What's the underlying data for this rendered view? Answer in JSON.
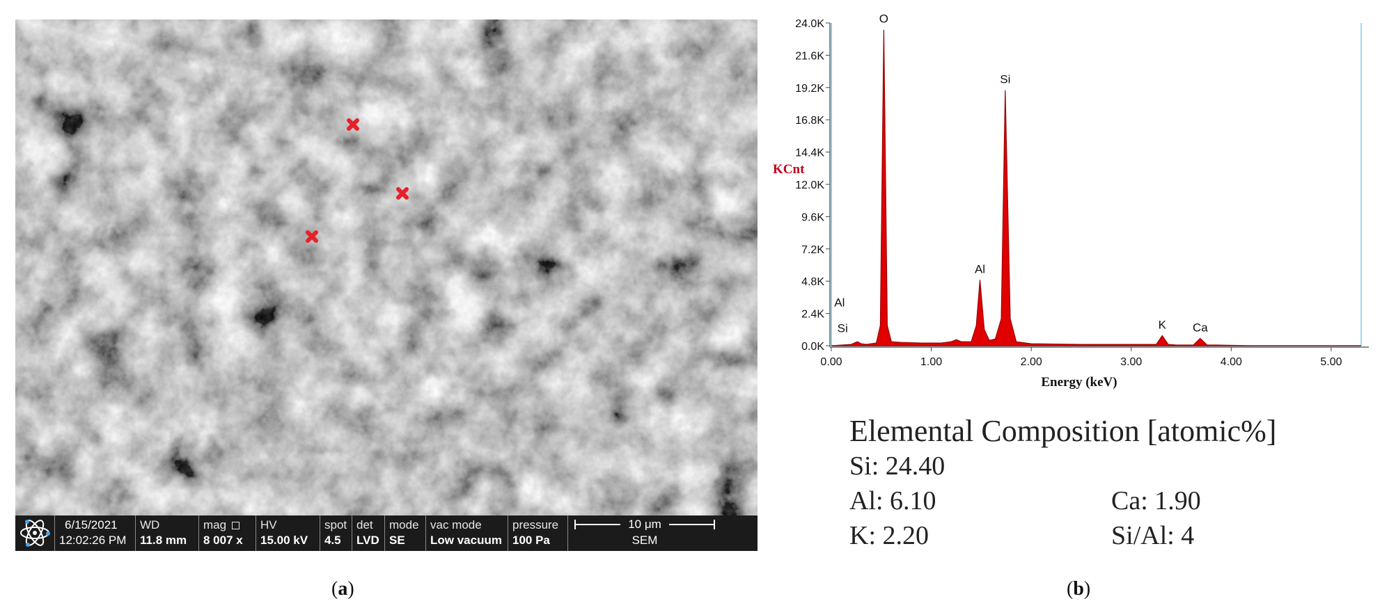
{
  "sem_image": {
    "info_bar": {
      "date": "6/15/2021",
      "time": "12:02:26 PM",
      "wd": {
        "label": "WD",
        "value": "11.8 mm"
      },
      "mag": {
        "label": "mag",
        "value": "8 007 x"
      },
      "hv": {
        "label": "HV",
        "value": "15.00 kV"
      },
      "spot": {
        "label": "spot",
        "value": "4.5"
      },
      "det": {
        "label": "det",
        "value": "LVD"
      },
      "mode": {
        "label": "mode",
        "value": "SE"
      },
      "vac_mode": {
        "label": "vac mode",
        "value": "Low vacuum"
      },
      "pressure": {
        "label": "pressure",
        "value": "100 Pa"
      },
      "scale_bar": "10 μm",
      "instrument": "SEM"
    },
    "marker_color": "#e8202a",
    "bar_color": "#1b1b1b"
  },
  "chart_data": {
    "type": "area",
    "title": "",
    "xlabel": "Energy (keV)",
    "ylabel": "KCnt",
    "xlim": [
      0,
      5.3
    ],
    "ylim": [
      0,
      24.0
    ],
    "x_ticks": [
      "0.00",
      "1.00",
      "2.00",
      "3.00",
      "4.00",
      "5.00"
    ],
    "y_ticks": [
      "0.0K",
      "2.4K",
      "4.8K",
      "7.2K",
      "9.6K",
      "12.0K",
      "14.4K",
      "16.8K",
      "19.2K",
      "21.6K",
      "24.0K"
    ],
    "fill_color": "#e00000",
    "series": [
      {
        "x": [
          0.0,
          0.2,
          0.26,
          0.3,
          0.35,
          0.45,
          0.49,
          0.525,
          0.56,
          0.6,
          0.7,
          0.9,
          1.1,
          1.2,
          1.25,
          1.3,
          1.4,
          1.45,
          1.487,
          1.53,
          1.58,
          1.64,
          1.7,
          1.74,
          1.79,
          1.85,
          2.0,
          2.5,
          3.0,
          3.25,
          3.31,
          3.37,
          3.45,
          3.62,
          3.69,
          3.76,
          3.85,
          4.2,
          5.3
        ],
        "y": [
          0.0,
          0.1,
          0.3,
          0.15,
          0.1,
          0.2,
          1.5,
          23.5,
          1.5,
          0.3,
          0.25,
          0.2,
          0.2,
          0.3,
          0.45,
          0.3,
          0.3,
          1.5,
          4.9,
          1.2,
          0.4,
          0.5,
          2.0,
          19.0,
          2.0,
          0.3,
          0.15,
          0.1,
          0.1,
          0.1,
          0.75,
          0.1,
          0.05,
          0.05,
          0.55,
          0.05,
          0.05,
          0.0,
          0.0
        ]
      }
    ],
    "annotations": [
      {
        "text": "O",
        "x": 0.525,
        "y": 23.5
      },
      {
        "text": "Si",
        "x": 1.74,
        "y": 19.0
      },
      {
        "text": "Al",
        "x": 1.487,
        "y": 4.9
      },
      {
        "text": "Al",
        "x": 0.03,
        "y": 2.4
      },
      {
        "text": "Si",
        "x": 0.06,
        "y": 0.5
      },
      {
        "text": "K",
        "x": 3.31,
        "y": 0.75
      },
      {
        "text": "Ca",
        "x": 3.69,
        "y": 0.55
      }
    ]
  },
  "composition": {
    "title": "Elemental Composition [atomic%]",
    "si": "Si: 24.40",
    "al": "Al:  6.10",
    "k": "K:   2.20",
    "ca": "Ca: 1.90",
    "ratio": "Si/Al: 4"
  },
  "panel_labels": {
    "a": {
      "open": "(",
      "letter": "a",
      "close": ")"
    },
    "b": {
      "open": "(",
      "letter": "b",
      "close": ")"
    }
  }
}
